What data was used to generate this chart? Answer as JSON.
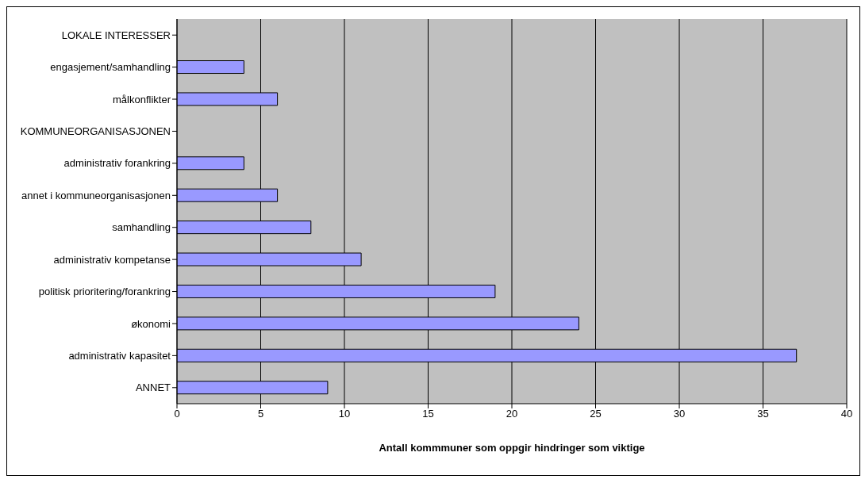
{
  "chart_data": {
    "type": "bar",
    "orientation": "horizontal",
    "categories": [
      "LOKALE INTERESSER",
      "engasjement/samhandling",
      "målkonflikter",
      "KOMMUNEORGANISASJONEN",
      "administrativ forankring",
      "annet i kommuneorganisasjonen",
      "samhandling",
      "administrativ kompetanse",
      "politisk prioritering/forankring",
      "økonomi",
      "administrativ kapasitet",
      "ANNET"
    ],
    "values": [
      null,
      4,
      6,
      null,
      4,
      6,
      8,
      11,
      19,
      24,
      37,
      9
    ],
    "color": "#9999ff",
    "xlabel": "Antall kommmuner som oppgir hindringer som viktige",
    "xlim": [
      0,
      40
    ],
    "xticks": [
      0,
      5,
      10,
      15,
      20,
      25,
      30,
      35,
      40
    ],
    "grid": "x",
    "legend": false
  }
}
